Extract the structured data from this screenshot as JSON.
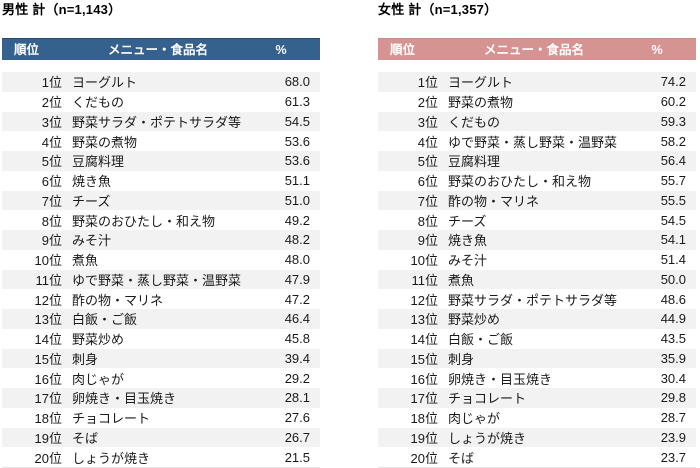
{
  "tables": [
    {
      "title": "男性 計（n=1,143）",
      "header": {
        "rank": "順位",
        "name": "メニュー・食品名",
        "pct": "%"
      },
      "colors": {
        "header_bg": "#35618F",
        "header_border": "#27496E",
        "stripe": "#F2F2F2"
      },
      "rows": [
        {
          "rank": "1位",
          "name": "ヨーグルト",
          "pct": "68.0"
        },
        {
          "rank": "2位",
          "name": "くだもの",
          "pct": "61.3"
        },
        {
          "rank": "3位",
          "name": "野菜サラダ・ポテトサラダ等",
          "pct": "54.5"
        },
        {
          "rank": "4位",
          "name": "野菜の煮物",
          "pct": "53.6"
        },
        {
          "rank": "5位",
          "name": "豆腐料理",
          "pct": "53.6"
        },
        {
          "rank": "6位",
          "name": "焼き魚",
          "pct": "51.1"
        },
        {
          "rank": "7位",
          "name": "チーズ",
          "pct": "51.0"
        },
        {
          "rank": "8位",
          "name": "野菜のおひたし・和え物",
          "pct": "49.2"
        },
        {
          "rank": "9位",
          "name": "みそ汁",
          "pct": "48.2"
        },
        {
          "rank": "10位",
          "name": "煮魚",
          "pct": "48.0"
        },
        {
          "rank": "11位",
          "name": "ゆで野菜・蒸し野菜・温野菜",
          "pct": "47.9"
        },
        {
          "rank": "12位",
          "name": "酢の物・マリネ",
          "pct": "47.2"
        },
        {
          "rank": "13位",
          "name": "白飯・ご飯",
          "pct": "46.4"
        },
        {
          "rank": "14位",
          "name": "野菜炒め",
          "pct": "45.8"
        },
        {
          "rank": "15位",
          "name": "刺身",
          "pct": "39.4"
        },
        {
          "rank": "16位",
          "name": "肉じゃが",
          "pct": "29.2"
        },
        {
          "rank": "17位",
          "name": "卵焼き・目玉焼き",
          "pct": "28.1"
        },
        {
          "rank": "18位",
          "name": "チョコレート",
          "pct": "27.6"
        },
        {
          "rank": "19位",
          "name": "そば",
          "pct": "26.7"
        },
        {
          "rank": "20位",
          "name": "しょうが焼き",
          "pct": "21.5"
        }
      ]
    },
    {
      "title": "女性 計（n=1,357）",
      "header": {
        "rank": "順位",
        "name": "メニュー・食品名",
        "pct": "%"
      },
      "colors": {
        "header_bg": "#D59392",
        "header_border": "#CB8A89",
        "stripe": "#F2F2F2"
      },
      "rows": [
        {
          "rank": "1位",
          "name": "ヨーグルト",
          "pct": "74.2"
        },
        {
          "rank": "2位",
          "name": "野菜の煮物",
          "pct": "60.2"
        },
        {
          "rank": "3位",
          "name": "くだもの",
          "pct": "59.3"
        },
        {
          "rank": "4位",
          "name": "ゆで野菜・蒸し野菜・温野菜",
          "pct": "58.2"
        },
        {
          "rank": "5位",
          "name": "豆腐料理",
          "pct": "56.4"
        },
        {
          "rank": "6位",
          "name": "野菜のおひたし・和え物",
          "pct": "55.7"
        },
        {
          "rank": "7位",
          "name": "酢の物・マリネ",
          "pct": "55.5"
        },
        {
          "rank": "8位",
          "name": "チーズ",
          "pct": "54.5"
        },
        {
          "rank": "9位",
          "name": "焼き魚",
          "pct": "54.1"
        },
        {
          "rank": "10位",
          "name": "みそ汁",
          "pct": "51.4"
        },
        {
          "rank": "11位",
          "name": "煮魚",
          "pct": "50.0"
        },
        {
          "rank": "12位",
          "name": "野菜サラダ・ポテトサラダ等",
          "pct": "48.6"
        },
        {
          "rank": "13位",
          "name": "野菜炒め",
          "pct": "44.9"
        },
        {
          "rank": "14位",
          "name": "白飯・ご飯",
          "pct": "43.5"
        },
        {
          "rank": "15位",
          "name": "刺身",
          "pct": "35.9"
        },
        {
          "rank": "16位",
          "name": "卵焼き・目玉焼き",
          "pct": "30.4"
        },
        {
          "rank": "17位",
          "name": "チョコレート",
          "pct": "29.8"
        },
        {
          "rank": "18位",
          "name": "肉じゃが",
          "pct": "28.7"
        },
        {
          "rank": "19位",
          "name": "しょうが焼き",
          "pct": "23.9"
        },
        {
          "rank": "20位",
          "name": "そば",
          "pct": "23.7"
        }
      ]
    }
  ]
}
